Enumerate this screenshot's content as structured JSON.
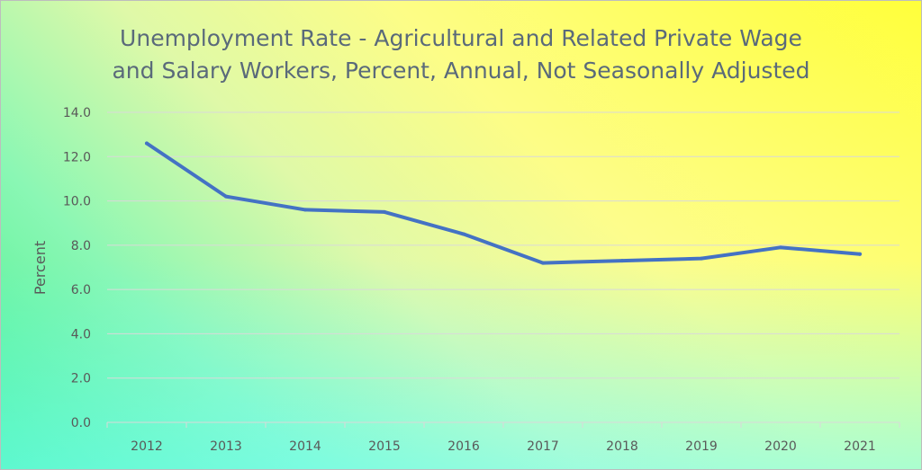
{
  "chart_data": {
    "type": "line",
    "title_lines": [
      "Unemployment Rate - Agricultural and Related Private Wage",
      "and Salary Workers, Percent, Annual, Not Seasonally Adjusted"
    ],
    "xlabel": "",
    "ylabel": "Percent",
    "categories": [
      "2012",
      "2013",
      "2014",
      "2015",
      "2016",
      "2017",
      "2018",
      "2019",
      "2020",
      "2021"
    ],
    "series": [
      {
        "color": "#4472c4",
        "values": [
          12.6,
          10.2,
          9.6,
          9.5,
          8.5,
          7.2,
          7.3,
          7.4,
          7.9,
          7.6
        ]
      }
    ],
    "yticks": [
      "0.0",
      "2.0",
      "4.0",
      "6.0",
      "8.0",
      "10.0",
      "12.0",
      "14.0"
    ],
    "ylim": [
      0,
      14
    ],
    "grid": "horizontal",
    "legend": "none"
  }
}
